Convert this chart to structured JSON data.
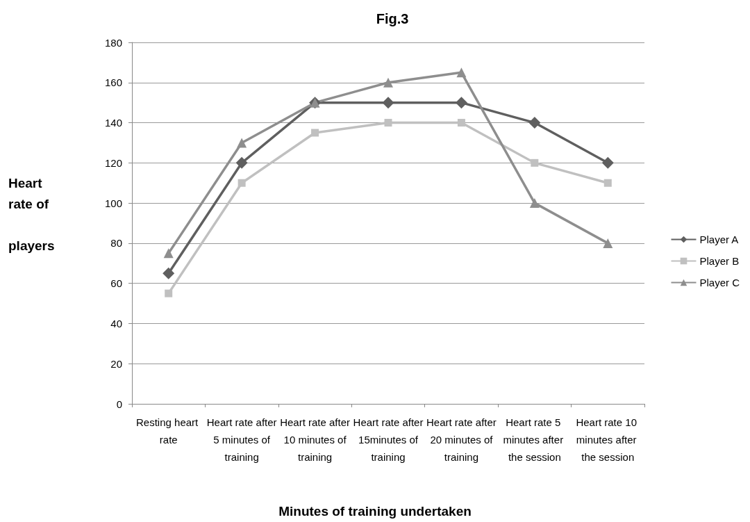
{
  "chart_data": {
    "type": "line",
    "title": "Fig.3",
    "xlabel": "Minutes of training undertaken",
    "ylabel": "Heart rate of players",
    "categories": [
      "Resting heart rate",
      "Heart rate after 5 minutes of training",
      "Heart rate after 10 minutes of training",
      "Heart rate after 15minutes of training",
      "Heart rate after 20 minutes of training",
      "Heart rate 5 minutes after the session",
      "Heart rate 10 minutes after the session"
    ],
    "series": [
      {
        "name": "Player A",
        "color": "#5f5f5f",
        "marker": "diamond",
        "values": [
          65,
          120,
          150,
          150,
          150,
          140,
          120
        ]
      },
      {
        "name": "Player B",
        "color": "#c0c0c0",
        "marker": "square",
        "values": [
          55,
          110,
          135,
          140,
          140,
          120,
          110
        ]
      },
      {
        "name": "Player C",
        "color": "#8e8e8e",
        "marker": "triangle",
        "values": [
          75,
          130,
          150,
          160,
          165,
          100,
          80
        ]
      }
    ],
    "ylim": [
      0,
      180
    ],
    "yticks": [
      0,
      20,
      40,
      60,
      80,
      100,
      120,
      140,
      160,
      180
    ],
    "grid": "y",
    "legend": "right",
    "line_style": "solid"
  }
}
